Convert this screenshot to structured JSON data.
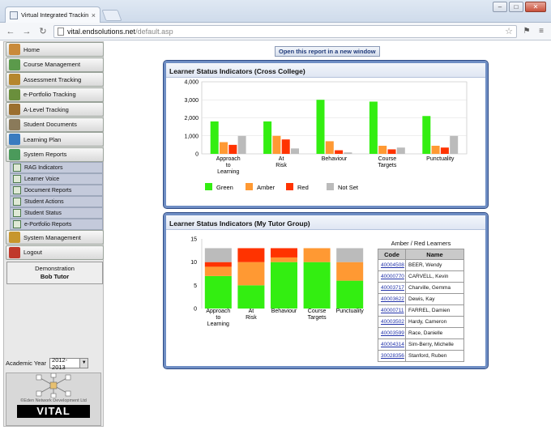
{
  "browser": {
    "tab_title": "Virtual Integrated Tracking",
    "tab_close": "×",
    "url_host": "vital.endsolutions.net",
    "url_path": "/default.asp",
    "window_buttons": [
      "–",
      "□",
      "✕"
    ]
  },
  "sidebar": {
    "menu": [
      {
        "label": "Home",
        "icon": "home-icon",
        "color": "#c98a3a"
      },
      {
        "label": "Course Management",
        "icon": "course-icon",
        "color": "#5b9a4b"
      },
      {
        "label": "Assessment Tracking",
        "icon": "assessment-icon",
        "color": "#b5862c"
      },
      {
        "label": "e-Portfolio Tracking",
        "icon": "portfolio-icon",
        "color": "#6a8f3c"
      },
      {
        "label": "A-Level Tracking",
        "icon": "alevel-icon",
        "color": "#9b6f2f"
      },
      {
        "label": "Student Documents",
        "icon": "documents-icon",
        "color": "#8a7a5a"
      },
      {
        "label": "Learning Plan",
        "icon": "learning-plan-icon",
        "color": "#3a7bbf"
      },
      {
        "label": "System Reports",
        "icon": "reports-icon",
        "color": "#4b9a5b"
      }
    ],
    "submenu": [
      "RAG Indicators",
      "Learner Voice",
      "Document Reports",
      "Student Actions",
      "Student Status",
      "e-Portfolio Reports"
    ],
    "menu_after": [
      {
        "label": "System Management",
        "icon": "system-management-icon",
        "color": "#c7962c"
      },
      {
        "label": "Logout",
        "icon": "logout-icon",
        "color": "#c0392b"
      }
    ],
    "user": {
      "line1": "Demonstration",
      "line2": "Bob Tutor"
    },
    "academic_year_label": "Academic Year",
    "academic_year_value": "2012-2013",
    "logo_caption": "©Eden Network Development Ltd",
    "logo_word": "VITAL"
  },
  "main": {
    "open_button": "Open this report in a new window"
  },
  "chart_data": [
    {
      "type": "bar",
      "title": "Learner Status Indicators (Cross College)",
      "categories": [
        "Approach to Learning",
        "At Risk",
        "Behaviour",
        "Course Targets",
        "Punctuality"
      ],
      "category_lines": [
        [
          "Approach",
          "to",
          "Learning"
        ],
        [
          "At",
          "Risk"
        ],
        [
          "Behaviour"
        ],
        [
          "Course",
          "Targets"
        ],
        [
          "Punctuality"
        ]
      ],
      "series": [
        {
          "name": "Green",
          "color": "#33ee11",
          "values": [
            1800,
            1800,
            3000,
            2900,
            2100
          ]
        },
        {
          "name": "Amber",
          "color": "#ff9933",
          "values": [
            650,
            1000,
            700,
            450,
            450
          ]
        },
        {
          "name": "Red",
          "color": "#ff3300",
          "values": [
            500,
            800,
            200,
            250,
            350
          ]
        },
        {
          "name": "Not Set",
          "color": "#bbbbbb",
          "values": [
            1000,
            300,
            80,
            350,
            1000
          ]
        }
      ],
      "yticks": [
        0,
        1000,
        2000,
        3000,
        4000
      ],
      "ytick_labels": [
        "0",
        "1,000",
        "2,000",
        "3,000",
        "4,000"
      ],
      "ylim": [
        0,
        4000
      ],
      "grid": true,
      "legend": "bottom"
    },
    {
      "type": "bar",
      "stacked": true,
      "title": "Learner Status Indicators (My Tutor Group)",
      "categories": [
        "Approach to Learning",
        "At Risk",
        "Behaviour",
        "Course Targets",
        "Punctuality"
      ],
      "category_lines": [
        [
          "Approach",
          "to",
          "Learning"
        ],
        [
          "At",
          "Risk"
        ],
        [
          "Behaviour"
        ],
        [
          "Course",
          "Targets"
        ],
        [
          "Punctuality"
        ]
      ],
      "series": [
        {
          "name": "Green",
          "color": "#33ee11",
          "values": [
            7,
            5,
            10,
            10,
            6
          ]
        },
        {
          "name": "Amber",
          "color": "#ff9933",
          "values": [
            2,
            5,
            1,
            3,
            4
          ]
        },
        {
          "name": "Red",
          "color": "#ff3300",
          "values": [
            1,
            3,
            2,
            0,
            0
          ]
        },
        {
          "name": "Not Set",
          "color": "#bbbbbb",
          "values": [
            3,
            0,
            0,
            0,
            3
          ]
        }
      ],
      "yticks": [
        0,
        5,
        10,
        15
      ],
      "ytick_labels": [
        "0",
        "5",
        "10",
        "15"
      ],
      "ylim": [
        0,
        15
      ],
      "grid": false,
      "legend": "none"
    }
  ],
  "learners": {
    "caption": "Amber / Red Learners",
    "headers": [
      "Code",
      "Name"
    ],
    "rows": [
      [
        "40004508",
        "BEER, Wendy"
      ],
      [
        "40000770",
        "CARVELL, Kevin"
      ],
      [
        "40003717",
        "Charville, Gemma"
      ],
      [
        "40003622",
        "Dewis, Kay"
      ],
      [
        "40000711",
        "FARREL, Damien"
      ],
      [
        "40003502",
        "Hardy, Cameron"
      ],
      [
        "40003599",
        "Race, Danielle"
      ],
      [
        "40004314",
        "Sim-Berry, Michelle"
      ],
      [
        "30028356",
        "Stanford, Ruben"
      ]
    ]
  }
}
